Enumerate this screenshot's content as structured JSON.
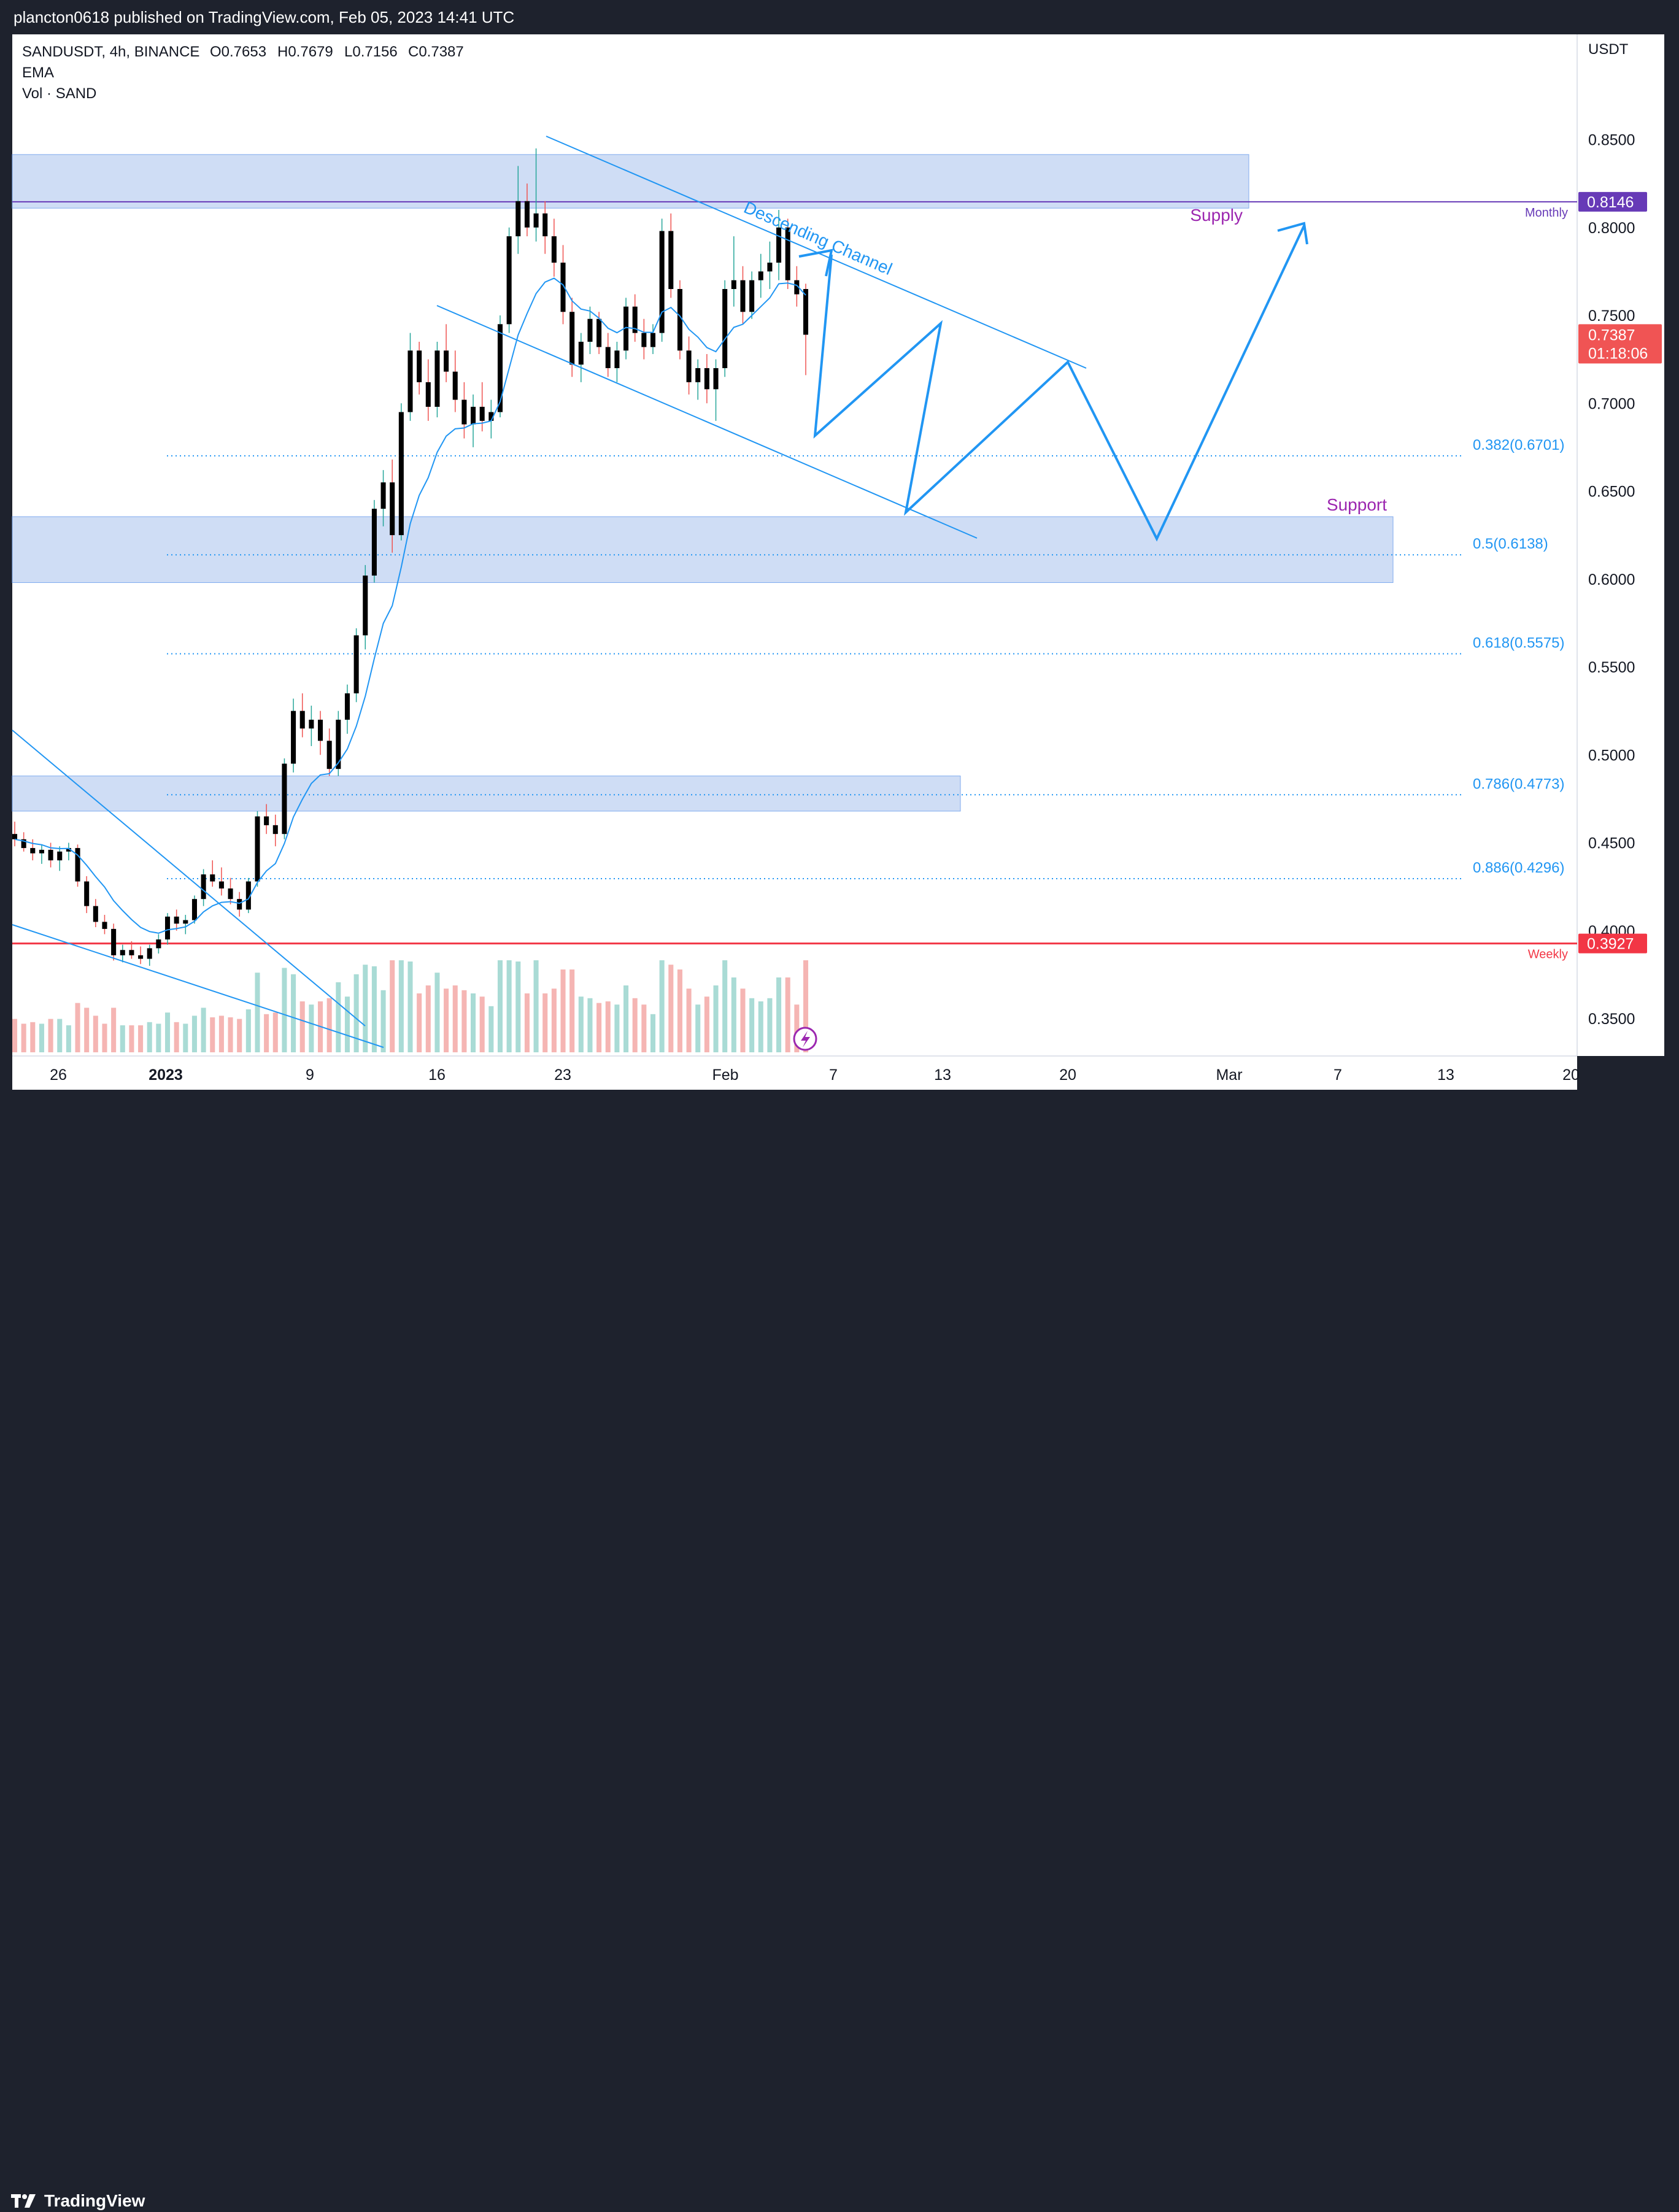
{
  "header": {
    "published_text": "plancton0618 published on TradingView.com, Feb 05, 2023 14:41 UTC"
  },
  "footer": {
    "brand": "TradingView"
  },
  "legend": {
    "symbol_line": "SANDUSDT, 4h, BINANCE",
    "open": "O0.7653",
    "high": "H0.7679",
    "low": "L0.7156",
    "close": "C0.7387",
    "ema": "EMA",
    "volume": "Vol · SAND"
  },
  "colors": {
    "bull": "#000000",
    "bear": "#000000",
    "bull_wick": "#26a69a",
    "bear_wick": "#ef5350",
    "ema": "#2196f3",
    "drawing": "#2196f3",
    "zone": "#cddcf5",
    "zone_border": "#7aa7ef",
    "label_purple": "#9c27b0",
    "monthly": "#673ab7",
    "weekly": "#f23645",
    "last_price": "#f05454"
  },
  "chart_data": {
    "type": "candlestick",
    "symbol": "SANDUSDT",
    "timeframe": "4h",
    "exchange": "BINANCE",
    "currency_label": "USDT",
    "yaxis": {
      "ticks": [
        "0.3500",
        "0.4000",
        "0.4500",
        "0.5000",
        "0.5500",
        "0.6000",
        "0.6500",
        "0.7000",
        "0.7500",
        "0.8000",
        "0.8500"
      ],
      "range": [
        0.32,
        0.87
      ]
    },
    "xaxis": {
      "tick_labels": [
        "26",
        "2023",
        "9",
        "16",
        "23",
        "Feb",
        "7",
        "13",
        "20",
        "Mar",
        "7",
        "13",
        "20"
      ]
    },
    "last_price": {
      "value": "0.7387",
      "countdown": "01:18:06"
    },
    "levels": [
      {
        "label": "Monthly",
        "value": 0.8146,
        "badge": "0.8146"
      },
      {
        "label": "Weekly",
        "value": 0.3927,
        "badge": "0.3927"
      }
    ],
    "fibonacci": [
      {
        "label": "0.382(0.6701)",
        "value": 0.6701
      },
      {
        "label": "0.5(0.6138)",
        "value": 0.6138
      },
      {
        "label": "0.618(0.5575)",
        "value": 0.5575
      },
      {
        "label": "0.786(0.4773)",
        "value": 0.4773
      },
      {
        "label": "0.886(0.4296)",
        "value": 0.4296
      }
    ],
    "zones": [
      {
        "label": "Supply",
        "top": 0.8415,
        "bottom": 0.811
      },
      {
        "label": "Support",
        "top": 0.6355,
        "bottom": 0.598
      },
      {
        "label": "",
        "top": 0.488,
        "bottom": 0.468
      }
    ],
    "annotations": {
      "channel_label": "Descending Channel"
    },
    "candles_approx": [
      [
        0.455,
        0.462,
        0.448,
        0.452
      ],
      [
        0.452,
        0.456,
        0.445,
        0.447
      ],
      [
        0.447,
        0.452,
        0.44,
        0.444
      ],
      [
        0.444,
        0.449,
        0.438,
        0.446
      ],
      [
        0.446,
        0.45,
        0.436,
        0.44
      ],
      [
        0.44,
        0.448,
        0.434,
        0.445
      ],
      [
        0.445,
        0.45,
        0.44,
        0.447
      ],
      [
        0.447,
        0.449,
        0.425,
        0.428
      ],
      [
        0.428,
        0.431,
        0.41,
        0.414
      ],
      [
        0.414,
        0.418,
        0.402,
        0.405
      ],
      [
        0.405,
        0.409,
        0.398,
        0.401
      ],
      [
        0.401,
        0.404,
        0.383,
        0.386
      ],
      [
        0.386,
        0.392,
        0.382,
        0.389
      ],
      [
        0.389,
        0.394,
        0.384,
        0.386
      ],
      [
        0.386,
        0.391,
        0.381,
        0.384
      ],
      [
        0.384,
        0.392,
        0.38,
        0.39
      ],
      [
        0.39,
        0.398,
        0.387,
        0.395
      ],
      [
        0.395,
        0.41,
        0.392,
        0.408
      ],
      [
        0.408,
        0.412,
        0.4,
        0.404
      ],
      [
        0.404,
        0.409,
        0.398,
        0.406
      ],
      [
        0.406,
        0.42,
        0.404,
        0.418
      ],
      [
        0.418,
        0.435,
        0.414,
        0.432
      ],
      [
        0.432,
        0.44,
        0.425,
        0.428
      ],
      [
        0.428,
        0.436,
        0.42,
        0.424
      ],
      [
        0.424,
        0.43,
        0.415,
        0.418
      ],
      [
        0.418,
        0.422,
        0.408,
        0.412
      ],
      [
        0.412,
        0.43,
        0.41,
        0.428
      ],
      [
        0.428,
        0.468,
        0.425,
        0.465
      ],
      [
        0.465,
        0.472,
        0.455,
        0.46
      ],
      [
        0.46,
        0.466,
        0.448,
        0.455
      ],
      [
        0.455,
        0.498,
        0.452,
        0.495
      ],
      [
        0.495,
        0.532,
        0.49,
        0.525
      ],
      [
        0.525,
        0.535,
        0.51,
        0.515
      ],
      [
        0.515,
        0.528,
        0.505,
        0.52
      ],
      [
        0.52,
        0.525,
        0.5,
        0.508
      ],
      [
        0.508,
        0.515,
        0.488,
        0.492
      ],
      [
        0.492,
        0.525,
        0.488,
        0.52
      ],
      [
        0.52,
        0.54,
        0.512,
        0.535
      ],
      [
        0.535,
        0.572,
        0.53,
        0.568
      ],
      [
        0.568,
        0.608,
        0.56,
        0.602
      ],
      [
        0.602,
        0.645,
        0.598,
        0.64
      ],
      [
        0.64,
        0.662,
        0.63,
        0.655
      ],
      [
        0.655,
        0.668,
        0.615,
        0.625
      ],
      [
        0.625,
        0.7,
        0.622,
        0.695
      ],
      [
        0.695,
        0.74,
        0.69,
        0.73
      ],
      [
        0.73,
        0.735,
        0.705,
        0.712
      ],
      [
        0.712,
        0.725,
        0.69,
        0.698
      ],
      [
        0.698,
        0.735,
        0.692,
        0.73
      ],
      [
        0.73,
        0.745,
        0.712,
        0.718
      ],
      [
        0.718,
        0.73,
        0.695,
        0.702
      ],
      [
        0.702,
        0.712,
        0.68,
        0.688
      ],
      [
        0.688,
        0.705,
        0.675,
        0.698
      ],
      [
        0.698,
        0.712,
        0.684,
        0.69
      ],
      [
        0.69,
        0.702,
        0.68,
        0.695
      ],
      [
        0.695,
        0.75,
        0.692,
        0.745
      ],
      [
        0.745,
        0.8,
        0.74,
        0.795
      ],
      [
        0.795,
        0.835,
        0.785,
        0.815
      ],
      [
        0.815,
        0.825,
        0.795,
        0.8
      ],
      [
        0.8,
        0.845,
        0.792,
        0.808
      ],
      [
        0.808,
        0.815,
        0.785,
        0.795
      ],
      [
        0.795,
        0.805,
        0.772,
        0.78
      ],
      [
        0.78,
        0.79,
        0.745,
        0.752
      ],
      [
        0.752,
        0.76,
        0.715,
        0.722
      ],
      [
        0.722,
        0.74,
        0.712,
        0.735
      ],
      [
        0.735,
        0.755,
        0.728,
        0.748
      ],
      [
        0.748,
        0.752,
        0.728,
        0.732
      ],
      [
        0.732,
        0.74,
        0.715,
        0.72
      ],
      [
        0.72,
        0.735,
        0.712,
        0.73
      ],
      [
        0.73,
        0.76,
        0.725,
        0.755
      ],
      [
        0.755,
        0.762,
        0.735,
        0.74
      ],
      [
        0.74,
        0.748,
        0.725,
        0.732
      ],
      [
        0.732,
        0.745,
        0.728,
        0.74
      ],
      [
        0.74,
        0.805,
        0.735,
        0.798
      ],
      [
        0.798,
        0.808,
        0.76,
        0.765
      ],
      [
        0.765,
        0.77,
        0.725,
        0.73
      ],
      [
        0.73,
        0.738,
        0.705,
        0.712
      ],
      [
        0.712,
        0.725,
        0.702,
        0.72
      ],
      [
        0.72,
        0.728,
        0.7,
        0.708
      ],
      [
        0.708,
        0.725,
        0.69,
        0.72
      ],
      [
        0.72,
        0.77,
        0.715,
        0.765
      ],
      [
        0.765,
        0.795,
        0.755,
        0.77
      ],
      [
        0.77,
        0.778,
        0.745,
        0.752
      ],
      [
        0.752,
        0.775,
        0.748,
        0.77
      ],
      [
        0.77,
        0.785,
        0.76,
        0.775
      ],
      [
        0.775,
        0.792,
        0.765,
        0.78
      ],
      [
        0.78,
        0.81,
        0.77,
        0.8
      ],
      [
        0.8,
        0.805,
        0.765,
        0.77
      ],
      [
        0.77,
        0.778,
        0.755,
        0.762
      ],
      [
        0.765,
        0.768,
        0.716,
        0.739
      ]
    ]
  }
}
